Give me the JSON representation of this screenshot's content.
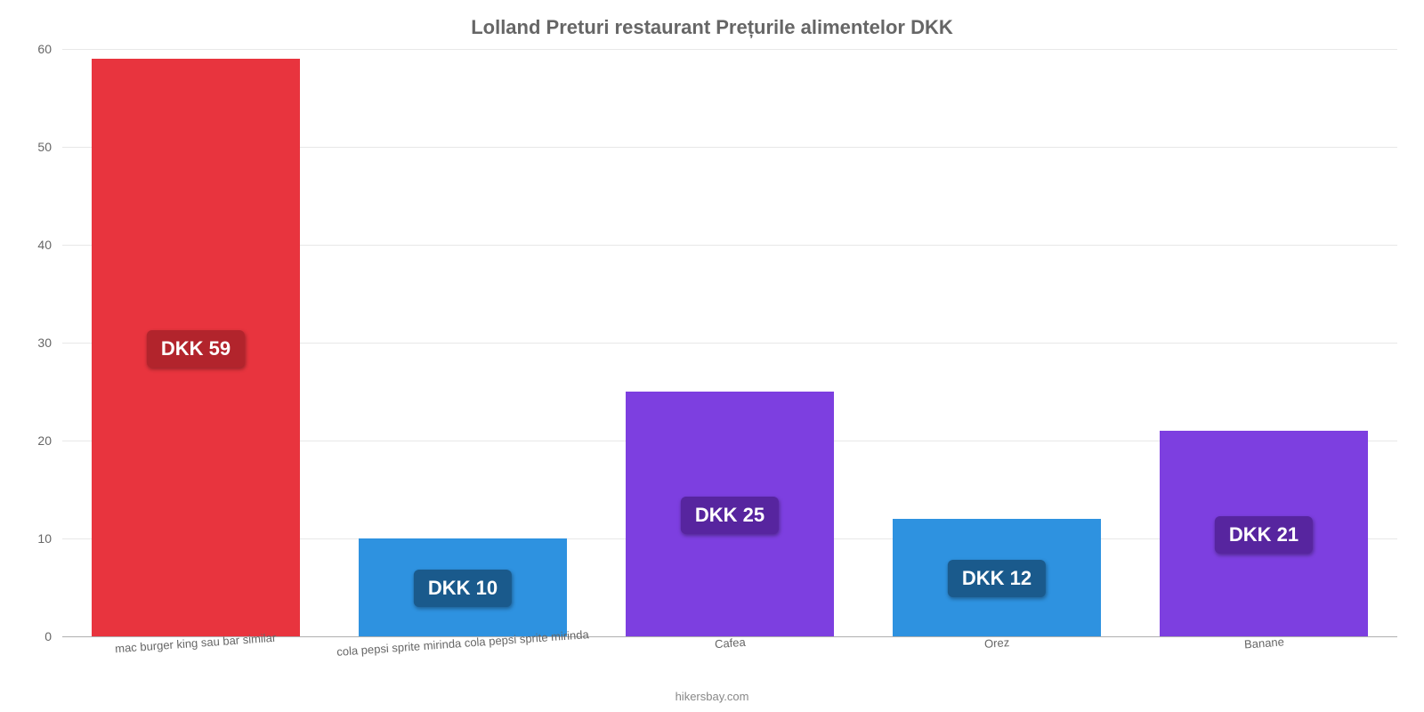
{
  "chart": {
    "type": "bar",
    "title": "Lolland Preturi restaurant Prețurile alimentelor DKK",
    "title_color": "#666666",
    "title_fontsize": 22,
    "background_color": "#ffffff",
    "grid_color": "#e8e8e8",
    "baseline_color": "#b0b0b0",
    "tick_label_color": "#666666",
    "tick_label_fontsize": 14,
    "xlabel_fontsize": 13,
    "xlabel_rotation_deg": -4,
    "ylim": [
      0,
      60
    ],
    "yticks": [
      0,
      10,
      20,
      30,
      40,
      50,
      60
    ],
    "bar_width_pct": 78,
    "data_label_fontsize": 22,
    "data_label_text_color": "#ffffff",
    "categories": [
      "mac burger king sau bar similar",
      "cola pepsi sprite mirinda cola pepsi sprite mirinda",
      "Cafea",
      "Orez",
      "Banane"
    ],
    "values": [
      59,
      10,
      25,
      12,
      21
    ],
    "data_labels": [
      "DKK 59",
      "DKK 10",
      "DKK 25",
      "DKK 12",
      "DKK 21"
    ],
    "bar_colors": [
      "#e8343e",
      "#2e92e0",
      "#7d3fe0",
      "#2e92e0",
      "#7d3fe0"
    ],
    "data_label_bg_colors": [
      "#b2242c",
      "#1a5a8c",
      "#57259f",
      "#1a5a8c",
      "#57259f"
    ],
    "attribution": "hikersbay.com",
    "attribution_color": "#888888"
  }
}
